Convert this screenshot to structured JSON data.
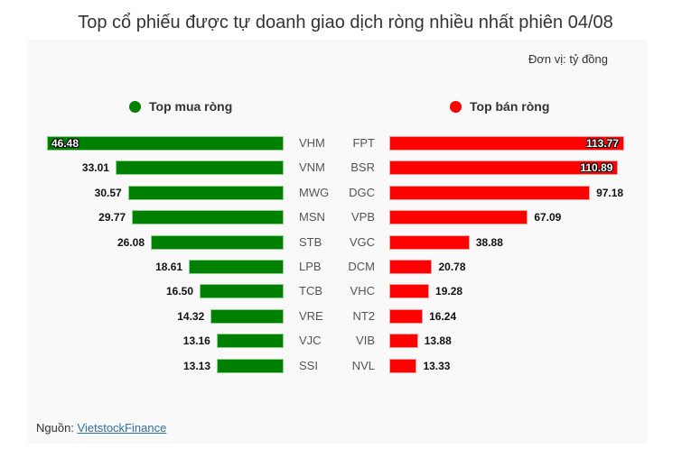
{
  "title": "Top cổ phiếu được tự doanh giao dịch ròng nhiều nhất phiên 04/08",
  "unit_label": "Đơn vị: tỷ đồng",
  "legend": {
    "buy": {
      "label": "Top mua ròng",
      "color": "#008000"
    },
    "sell": {
      "label": "Top bán ròng",
      "color": "#ff0000"
    }
  },
  "source": {
    "prefix": "Nguồn: ",
    "link": "VietstockFinance"
  },
  "chart_data": [
    {
      "type": "bar",
      "orientation": "horizontal",
      "title": "Top mua ròng",
      "categories": [
        "VHM",
        "VNM",
        "MWG",
        "MSN",
        "STB",
        "LPB",
        "TCB",
        "VRE",
        "VJC",
        "SSI"
      ],
      "values": [
        46.48,
        33.01,
        30.57,
        29.77,
        26.08,
        18.61,
        16.5,
        14.32,
        13.16,
        13.13
      ],
      "value_labels": [
        "46.48",
        "33.01",
        "30.57",
        "29.77",
        "26.08",
        "18.61",
        "16.50",
        "14.32",
        "13.16",
        "13.13"
      ],
      "color": "#008000",
      "unit": "tỷ đồng",
      "grid": false
    },
    {
      "type": "bar",
      "orientation": "horizontal",
      "title": "Top bán ròng",
      "categories": [
        "FPT",
        "BSR",
        "DGC",
        "VPB",
        "VGC",
        "DCM",
        "VHC",
        "NT2",
        "VIB",
        "NVL"
      ],
      "values": [
        113.77,
        110.89,
        97.18,
        67.09,
        38.88,
        20.78,
        19.28,
        16.24,
        13.88,
        13.33
      ],
      "value_labels": [
        "113.77",
        "110.89",
        "97.18",
        "67.09",
        "38.88",
        "20.78",
        "19.28",
        "16.24",
        "13.88",
        "13.33"
      ],
      "color": "#ff0000",
      "unit": "tỷ đồng",
      "grid": false
    }
  ]
}
